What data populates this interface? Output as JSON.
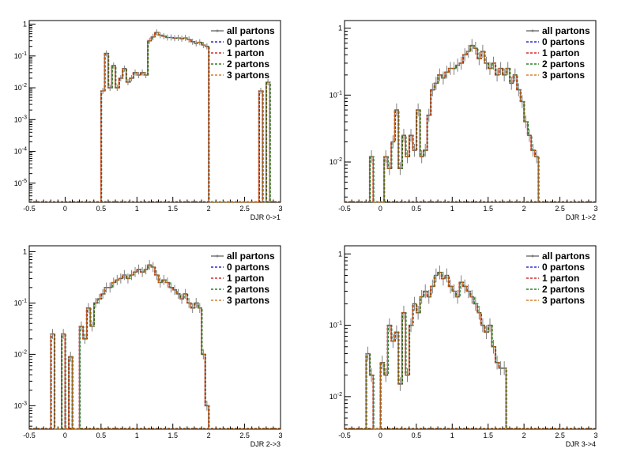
{
  "colors": {
    "all": "#7f7f7f",
    "p0": "#0000cc",
    "p1": "#cc0000",
    "p2": "#006600",
    "p3": "#cc6600",
    "axis": "#000000"
  },
  "chart_data": [
    {
      "type": "line",
      "step": true,
      "xlabel": "DJR 0->1",
      "xlim": [
        -0.5,
        3
      ],
      "x_ticks": [
        "-0.5",
        "0",
        "0.5",
        "1",
        "1.5",
        "2",
        "2.5",
        "3"
      ],
      "yscale": "log",
      "ylim": [
        2.5e-06,
        1.3
      ],
      "y_ticks": [
        {
          "value": 1,
          "label": "1"
        },
        {
          "value": 0.1,
          "label": "10^-1"
        },
        {
          "value": 0.01,
          "label": "10^-2"
        },
        {
          "value": 0.001,
          "label": "10^-3"
        },
        {
          "value": 0.0001,
          "label": "10^-4"
        },
        {
          "value": 1e-05,
          "label": "10^-5"
        }
      ],
      "legend": [
        "all partons",
        "0 partons",
        "1 parton",
        "2 partons",
        "3 partons"
      ],
      "legend_position": "top-right",
      "bins": [
        [
          0.5,
          0.55,
          0.008
        ],
        [
          0.55,
          0.6,
          0.12
        ],
        [
          0.6,
          0.65,
          0.01
        ],
        [
          0.65,
          0.7,
          0.05
        ],
        [
          0.7,
          0.75,
          0.01
        ],
        [
          0.75,
          0.8,
          0.02
        ],
        [
          0.8,
          0.85,
          0.04
        ],
        [
          0.85,
          0.9,
          0.015
        ],
        [
          0.9,
          0.95,
          0.02
        ],
        [
          0.95,
          1.0,
          0.03
        ],
        [
          1.0,
          1.05,
          0.025
        ],
        [
          1.05,
          1.1,
          0.03
        ],
        [
          1.1,
          1.15,
          0.025
        ],
        [
          1.15,
          1.2,
          0.3
        ],
        [
          1.2,
          1.25,
          0.4
        ],
        [
          1.25,
          1.3,
          0.55
        ],
        [
          1.3,
          1.35,
          0.45
        ],
        [
          1.35,
          1.4,
          0.42
        ],
        [
          1.4,
          1.45,
          0.38
        ],
        [
          1.45,
          1.5,
          0.38
        ],
        [
          1.5,
          1.55,
          0.36
        ],
        [
          1.55,
          1.6,
          0.37
        ],
        [
          1.6,
          1.65,
          0.35
        ],
        [
          1.65,
          1.7,
          0.37
        ],
        [
          1.7,
          1.75,
          0.33
        ],
        [
          1.75,
          1.8,
          0.28
        ],
        [
          1.8,
          1.85,
          0.25
        ],
        [
          1.85,
          1.9,
          0.27
        ],
        [
          1.9,
          1.95,
          0.22
        ],
        [
          1.95,
          2.0,
          0.2
        ],
        [
          2.7,
          2.75,
          0.008
        ],
        [
          2.8,
          2.85,
          0.015
        ]
      ]
    },
    {
      "type": "line",
      "step": true,
      "xlabel": "DJR 1->2",
      "xlim": [
        -0.5,
        3
      ],
      "x_ticks": [
        "-0.5",
        "0",
        "0.5",
        "1",
        "1.5",
        "2",
        "2.5",
        "3"
      ],
      "yscale": "log",
      "ylim": [
        0.0025,
        1.3
      ],
      "y_ticks": [
        {
          "value": 1,
          "label": "1"
        },
        {
          "value": 0.1,
          "label": "10^-1"
        },
        {
          "value": 0.01,
          "label": "10^-2"
        }
      ],
      "legend": [
        "all partons",
        "0 partons",
        "1 parton",
        "2 partons",
        "3 partons"
      ],
      "legend_position": "top-right",
      "bins": [
        [
          -0.15,
          -0.1,
          0.012
        ],
        [
          0.05,
          0.1,
          0.012
        ],
        [
          0.1,
          0.15,
          0.008
        ],
        [
          0.15,
          0.2,
          0.02
        ],
        [
          0.2,
          0.25,
          0.06
        ],
        [
          0.25,
          0.3,
          0.008
        ],
        [
          0.3,
          0.35,
          0.025
        ],
        [
          0.35,
          0.4,
          0.012
        ],
        [
          0.4,
          0.45,
          0.025
        ],
        [
          0.45,
          0.5,
          0.015
        ],
        [
          0.5,
          0.55,
          0.06
        ],
        [
          0.55,
          0.6,
          0.012
        ],
        [
          0.6,
          0.65,
          0.015
        ],
        [
          0.65,
          0.7,
          0.05
        ],
        [
          0.7,
          0.75,
          0.12
        ],
        [
          0.75,
          0.8,
          0.15
        ],
        [
          0.8,
          0.85,
          0.2
        ],
        [
          0.85,
          0.9,
          0.18
        ],
        [
          0.9,
          0.95,
          0.22
        ],
        [
          0.95,
          1.0,
          0.25
        ],
        [
          1.0,
          1.05,
          0.25
        ],
        [
          1.05,
          1.1,
          0.28
        ],
        [
          1.1,
          1.15,
          0.3
        ],
        [
          1.15,
          1.2,
          0.4
        ],
        [
          1.2,
          1.25,
          0.45
        ],
        [
          1.25,
          1.3,
          0.55
        ],
        [
          1.3,
          1.35,
          0.5
        ],
        [
          1.35,
          1.4,
          0.35
        ],
        [
          1.4,
          1.45,
          0.45
        ],
        [
          1.45,
          1.5,
          0.3
        ],
        [
          1.5,
          1.55,
          0.25
        ],
        [
          1.55,
          1.6,
          0.3
        ],
        [
          1.6,
          1.65,
          0.2
        ],
        [
          1.65,
          1.7,
          0.25
        ],
        [
          1.7,
          1.75,
          0.2
        ],
        [
          1.75,
          1.8,
          0.25
        ],
        [
          1.8,
          1.85,
          0.15
        ],
        [
          1.85,
          1.9,
          0.2
        ],
        [
          1.9,
          1.95,
          0.12
        ],
        [
          1.95,
          2.0,
          0.08
        ],
        [
          2.0,
          2.05,
          0.04
        ],
        [
          2.05,
          2.1,
          0.025
        ],
        [
          2.1,
          2.15,
          0.015
        ],
        [
          2.15,
          2.2,
          0.012
        ]
      ]
    },
    {
      "type": "line",
      "step": true,
      "xlabel": "DJR 2->3",
      "xlim": [
        -0.5,
        3
      ],
      "x_ticks": [
        "-0.5",
        "0",
        "0.5",
        "1",
        "1.5",
        "2",
        "2.5",
        "3"
      ],
      "yscale": "log",
      "ylim": [
        0.00035,
        1.3
      ],
      "y_ticks": [
        {
          "value": 1,
          "label": "1"
        },
        {
          "value": 0.1,
          "label": "10^-1"
        },
        {
          "value": 0.01,
          "label": "10^-2"
        },
        {
          "value": 0.001,
          "label": "10^-3"
        }
      ],
      "legend": [
        "all partons",
        "0 partons",
        "1 parton",
        "2 partons",
        "3 partons"
      ],
      "legend_position": "top-right",
      "bins": [
        [
          -0.2,
          -0.15,
          0.025
        ],
        [
          -0.05,
          0.0,
          0.025
        ],
        [
          0.05,
          0.1,
          0.009
        ],
        [
          0.2,
          0.25,
          0.035
        ],
        [
          0.25,
          0.3,
          0.02
        ],
        [
          0.3,
          0.35,
          0.08
        ],
        [
          0.35,
          0.4,
          0.035
        ],
        [
          0.4,
          0.45,
          0.1
        ],
        [
          0.45,
          0.5,
          0.12
        ],
        [
          0.5,
          0.55,
          0.15
        ],
        [
          0.55,
          0.6,
          0.2
        ],
        [
          0.6,
          0.65,
          0.2
        ],
        [
          0.65,
          0.7,
          0.25
        ],
        [
          0.7,
          0.75,
          0.28
        ],
        [
          0.75,
          0.8,
          0.3
        ],
        [
          0.8,
          0.85,
          0.35
        ],
        [
          0.85,
          0.9,
          0.3
        ],
        [
          0.9,
          0.95,
          0.35
        ],
        [
          0.95,
          1.0,
          0.4
        ],
        [
          1.0,
          1.05,
          0.45
        ],
        [
          1.05,
          1.1,
          0.4
        ],
        [
          1.1,
          1.15,
          0.45
        ],
        [
          1.15,
          1.2,
          0.55
        ],
        [
          1.2,
          1.25,
          0.5
        ],
        [
          1.25,
          1.3,
          0.35
        ],
        [
          1.3,
          1.35,
          0.25
        ],
        [
          1.35,
          1.4,
          0.28
        ],
        [
          1.4,
          1.45,
          0.25
        ],
        [
          1.45,
          1.5,
          0.2
        ],
        [
          1.5,
          1.55,
          0.18
        ],
        [
          1.55,
          1.6,
          0.15
        ],
        [
          1.6,
          1.65,
          0.12
        ],
        [
          1.65,
          1.7,
          0.15
        ],
        [
          1.7,
          1.75,
          0.1
        ],
        [
          1.75,
          1.8,
          0.08
        ],
        [
          1.8,
          1.85,
          0.1
        ],
        [
          1.85,
          1.9,
          0.08
        ],
        [
          1.9,
          1.95,
          0.01
        ],
        [
          1.95,
          2.0,
          0.001
        ]
      ]
    },
    {
      "type": "line",
      "step": true,
      "xlabel": "DJR 3->4",
      "xlim": [
        -0.5,
        3
      ],
      "x_ticks": [
        "-0.5",
        "0",
        "0.5",
        "1",
        "1.5",
        "2",
        "2.5",
        "3"
      ],
      "yscale": "log",
      "ylim": [
        0.0035,
        1.3
      ],
      "y_ticks": [
        {
          "value": 1,
          "label": "1"
        },
        {
          "value": 0.1,
          "label": "10^-1"
        },
        {
          "value": 0.01,
          "label": "10^-2"
        }
      ],
      "legend": [
        "all partons",
        "0 partons",
        "1 parton",
        "2 partons",
        "3 partons"
      ],
      "legend_position": "top-right",
      "bins": [
        [
          -0.2,
          -0.15,
          0.04
        ],
        [
          -0.15,
          -0.1,
          0.02
        ],
        [
          0.0,
          0.05,
          0.03
        ],
        [
          0.05,
          0.1,
          0.02
        ],
        [
          0.1,
          0.15,
          0.1
        ],
        [
          0.15,
          0.2,
          0.06
        ],
        [
          0.2,
          0.25,
          0.08
        ],
        [
          0.25,
          0.3,
          0.015
        ],
        [
          0.3,
          0.35,
          0.15
        ],
        [
          0.35,
          0.4,
          0.02
        ],
        [
          0.4,
          0.45,
          0.1
        ],
        [
          0.45,
          0.5,
          0.2
        ],
        [
          0.5,
          0.55,
          0.15
        ],
        [
          0.55,
          0.6,
          0.25
        ],
        [
          0.6,
          0.65,
          0.3
        ],
        [
          0.65,
          0.7,
          0.25
        ],
        [
          0.7,
          0.75,
          0.35
        ],
        [
          0.75,
          0.8,
          0.5
        ],
        [
          0.8,
          0.85,
          0.55
        ],
        [
          0.85,
          0.9,
          0.45
        ],
        [
          0.9,
          0.95,
          0.5
        ],
        [
          0.95,
          1.0,
          0.35
        ],
        [
          1.0,
          1.05,
          0.3
        ],
        [
          1.05,
          1.1,
          0.25
        ],
        [
          1.1,
          1.15,
          0.4
        ],
        [
          1.15,
          1.2,
          0.35
        ],
        [
          1.2,
          1.25,
          0.3
        ],
        [
          1.25,
          1.3,
          0.25
        ],
        [
          1.3,
          1.35,
          0.2
        ],
        [
          1.35,
          1.4,
          0.15
        ],
        [
          1.4,
          1.45,
          0.1
        ],
        [
          1.45,
          1.5,
          0.08
        ],
        [
          1.5,
          1.55,
          0.1
        ],
        [
          1.55,
          1.6,
          0.05
        ],
        [
          1.6,
          1.65,
          0.03
        ],
        [
          1.65,
          1.7,
          0.025
        ],
        [
          1.7,
          1.75,
          0.025
        ]
      ]
    }
  ]
}
